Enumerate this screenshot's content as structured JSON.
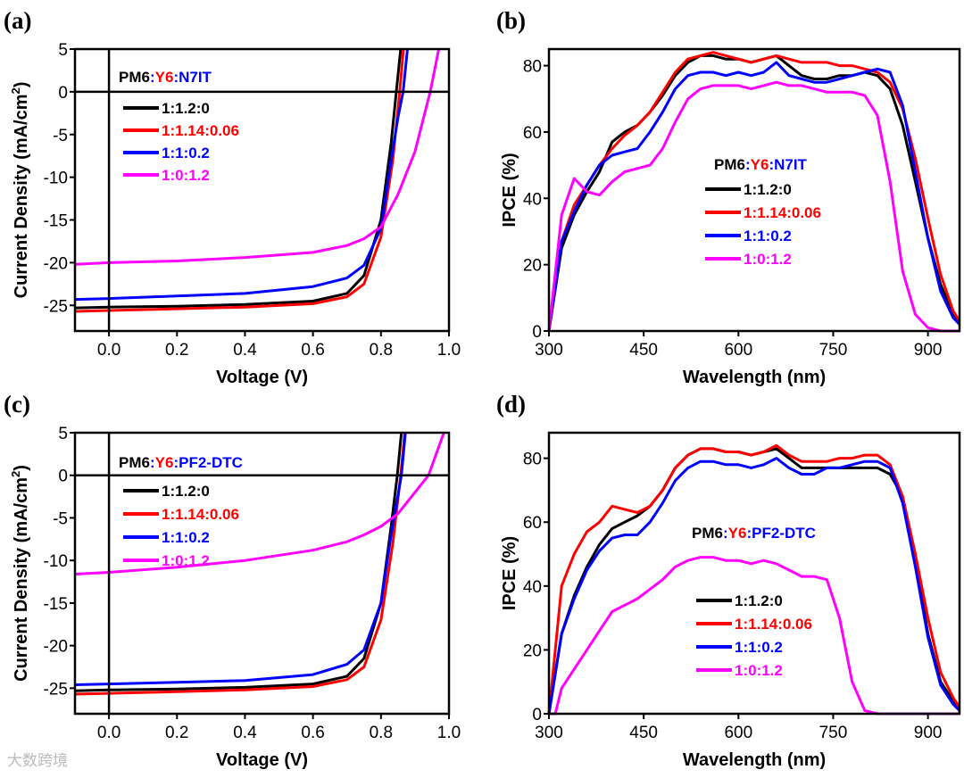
{
  "watermark": "大数跨境",
  "chart_data": [
    {
      "panel": "(a)",
      "type": "line",
      "xlabel": "Voltage (V)",
      "ylabel_parts": [
        "Current Density (mA/cm",
        "2",
        ")"
      ],
      "xlim": [
        -0.1,
        1.0
      ],
      "ylim": [
        -28,
        5
      ],
      "xticks": [
        0.0,
        0.2,
        0.4,
        0.6,
        0.8,
        1.0
      ],
      "xtick_labels": [
        "0.0",
        "0.2",
        "0.4",
        "0.6",
        "0.8",
        "1.0"
      ],
      "yticks": [
        5,
        0,
        -5,
        -10,
        -15,
        -20,
        -25
      ],
      "ytick_labels": [
        "5",
        "0",
        "-5",
        "-10",
        "-15",
        "-20",
        "-25"
      ],
      "zero_lines": true,
      "legend_title": [
        {
          "text": "PM6",
          "color": "#000000"
        },
        {
          "text": ":",
          "color": "#0000ff"
        },
        {
          "text": "Y6",
          "color": "#ff0000"
        },
        {
          "text": ":N7IT",
          "color": "#0000ff"
        }
      ],
      "legend_placement": "top-left",
      "series": [
        {
          "name": "1:1.2:0",
          "color": "#000000",
          "x": [
            -0.1,
            0,
            0.2,
            0.4,
            0.6,
            0.7,
            0.75,
            0.8,
            0.83,
            0.845,
            0.858
          ],
          "y": [
            -25.3,
            -25.2,
            -25.1,
            -24.9,
            -24.5,
            -23.6,
            -21.5,
            -15,
            -6,
            0,
            5
          ]
        },
        {
          "name": "1:1.14:0.06",
          "color": "#ff0000",
          "x": [
            -0.1,
            0,
            0.2,
            0.4,
            0.6,
            0.7,
            0.75,
            0.8,
            0.835,
            0.855,
            0.866
          ],
          "y": [
            -25.7,
            -25.6,
            -25.4,
            -25.2,
            -24.8,
            -24.0,
            -22.5,
            -17,
            -8,
            0,
            5
          ]
        },
        {
          "name": "1:1:0.2",
          "color": "#0000ff",
          "x": [
            -0.1,
            0,
            0.2,
            0.4,
            0.6,
            0.7,
            0.75,
            0.8,
            0.83,
            0.85,
            0.865,
            0.878
          ],
          "y": [
            -24.3,
            -24.2,
            -23.9,
            -23.6,
            -22.8,
            -21.8,
            -20.3,
            -16,
            -8,
            -3,
            0,
            5
          ]
        },
        {
          "name": "1:0:1.2",
          "color": "#ff00ff",
          "x": [
            -0.1,
            0,
            0.2,
            0.4,
            0.6,
            0.7,
            0.75,
            0.8,
            0.85,
            0.9,
            0.945,
            0.97
          ],
          "y": [
            -20.2,
            -20.0,
            -19.8,
            -19.4,
            -18.8,
            -18.0,
            -17.2,
            -15.8,
            -12,
            -7,
            0,
            5
          ]
        }
      ]
    },
    {
      "panel": "(b)",
      "type": "line",
      "xlabel": "Wavelength (nm)",
      "ylabel_parts": [
        "IPCE (%)",
        "",
        ""
      ],
      "xlim": [
        300,
        950
      ],
      "ylim": [
        0,
        85
      ],
      "xticks": [
        300,
        450,
        600,
        750,
        900
      ],
      "xtick_labels": [
        "300",
        "450",
        "600",
        "750",
        "900"
      ],
      "yticks": [
        0,
        20,
        40,
        60,
        80
      ],
      "ytick_labels": [
        "0",
        "20",
        "40",
        "60",
        "80"
      ],
      "zero_lines": false,
      "legend_title": [
        {
          "text": "PM6",
          "color": "#000000"
        },
        {
          "text": ":",
          "color": "#0000ff"
        },
        {
          "text": "Y6",
          "color": "#ff0000"
        },
        {
          "text": ":N7IT",
          "color": "#0000ff"
        }
      ],
      "legend_placement": "center",
      "series": [
        {
          "name": "1:1.2:0",
          "color": "#000000",
          "x": [
            300,
            320,
            340,
            360,
            380,
            400,
            420,
            440,
            460,
            480,
            500,
            520,
            540,
            560,
            580,
            600,
            620,
            640,
            660,
            680,
            700,
            720,
            740,
            760,
            780,
            800,
            820,
            840,
            860,
            880,
            900,
            920,
            940,
            950
          ],
          "y": [
            0,
            25,
            35,
            42,
            48,
            57,
            60,
            62,
            66,
            71,
            77,
            81,
            83,
            83,
            82,
            82,
            81,
            82,
            83,
            80,
            77,
            76,
            76,
            77,
            77,
            78,
            77,
            73,
            62,
            45,
            28,
            14,
            5,
            3
          ]
        },
        {
          "name": "1:1.14:0.06",
          "color": "#ff0000",
          "x": [
            300,
            320,
            340,
            360,
            380,
            400,
            420,
            440,
            460,
            480,
            500,
            520,
            540,
            560,
            580,
            600,
            620,
            640,
            660,
            680,
            700,
            720,
            740,
            760,
            780,
            800,
            820,
            840,
            860,
            880,
            900,
            920,
            940,
            950
          ],
          "y": [
            0,
            27,
            38,
            44,
            50,
            55,
            59,
            62,
            66,
            72,
            78,
            82,
            83,
            84,
            83,
            82,
            81,
            82,
            83,
            82,
            81,
            81,
            81,
            80,
            80,
            79,
            78,
            75,
            67,
            52,
            34,
            17,
            6,
            3
          ]
        },
        {
          "name": "1:1:0.2",
          "color": "#0000ff",
          "x": [
            300,
            320,
            340,
            360,
            380,
            400,
            420,
            440,
            460,
            480,
            500,
            520,
            540,
            560,
            580,
            600,
            620,
            640,
            660,
            680,
            700,
            720,
            740,
            760,
            780,
            800,
            820,
            840,
            860,
            880,
            900,
            920,
            940,
            950
          ],
          "y": [
            0,
            27,
            36,
            44,
            50,
            53,
            54,
            55,
            60,
            66,
            73,
            77,
            78,
            78,
            77,
            78,
            77,
            78,
            81,
            77,
            76,
            75,
            75,
            76,
            77,
            78,
            79,
            78,
            68,
            48,
            28,
            12,
            4,
            2
          ]
        },
        {
          "name": "1:0:1.2",
          "color": "#ff00ff",
          "x": [
            300,
            320,
            340,
            360,
            380,
            400,
            420,
            440,
            460,
            480,
            500,
            520,
            540,
            560,
            580,
            600,
            620,
            640,
            660,
            680,
            700,
            720,
            740,
            760,
            780,
            800,
            820,
            840,
            860,
            880,
            900,
            920,
            940,
            950
          ],
          "y": [
            0,
            35,
            46,
            42,
            41,
            45,
            48,
            49,
            50,
            55,
            63,
            70,
            73,
            74,
            74,
            74,
            73,
            74,
            75,
            74,
            74,
            73,
            72,
            72,
            72,
            71,
            65,
            45,
            18,
            5,
            1,
            0,
            0,
            0
          ]
        }
      ]
    },
    {
      "panel": "(c)",
      "type": "line",
      "xlabel": "Voltage (V)",
      "ylabel_parts": [
        "Current Density (mA/cm",
        "2",
        ")"
      ],
      "xlim": [
        -0.1,
        1.0
      ],
      "ylim": [
        -28,
        5
      ],
      "xticks": [
        0.0,
        0.2,
        0.4,
        0.6,
        0.8,
        1.0
      ],
      "xtick_labels": [
        "0.0",
        "0.2",
        "0.4",
        "0.6",
        "0.8",
        "1.0"
      ],
      "yticks": [
        5,
        0,
        -5,
        -10,
        -15,
        -20,
        -25
      ],
      "ytick_labels": [
        "5",
        "0",
        "-5",
        "-10",
        "-15",
        "-20",
        "-25"
      ],
      "zero_lines": true,
      "legend_title": [
        {
          "text": "PM6",
          "color": "#000000"
        },
        {
          "text": ":",
          "color": "#0000ff"
        },
        {
          "text": "Y6",
          "color": "#ff0000"
        },
        {
          "text": ":PF2-DTC",
          "color": "#0000ff"
        }
      ],
      "legend_placement": "top-left",
      "series": [
        {
          "name": "1:1.2:0",
          "color": "#000000",
          "x": [
            -0.1,
            0,
            0.2,
            0.4,
            0.6,
            0.7,
            0.75,
            0.8,
            0.83,
            0.848,
            0.86
          ],
          "y": [
            -25.3,
            -25.2,
            -25.1,
            -24.9,
            -24.5,
            -23.6,
            -21.5,
            -15,
            -6,
            0,
            5
          ]
        },
        {
          "name": "1:1.14:0.06",
          "color": "#ff0000",
          "x": [
            -0.1,
            0,
            0.2,
            0.4,
            0.6,
            0.7,
            0.75,
            0.8,
            0.835,
            0.858,
            0.87
          ],
          "y": [
            -25.7,
            -25.6,
            -25.4,
            -25.2,
            -24.8,
            -24.0,
            -22.5,
            -17,
            -8,
            0,
            5
          ]
        },
        {
          "name": "1:1:0.2",
          "color": "#0000ff",
          "x": [
            -0.1,
            0,
            0.2,
            0.4,
            0.6,
            0.7,
            0.75,
            0.8,
            0.83,
            0.86,
            0.872
          ],
          "y": [
            -24.6,
            -24.5,
            -24.3,
            -24.1,
            -23.4,
            -22.2,
            -20.5,
            -15,
            -7,
            0,
            5
          ]
        },
        {
          "name": "1:0:1.2",
          "color": "#ff00ff",
          "x": [
            -0.1,
            0,
            0.2,
            0.4,
            0.6,
            0.7,
            0.75,
            0.8,
            0.85,
            0.9,
            0.94,
            0.985
          ],
          "y": [
            -11.6,
            -11.4,
            -10.8,
            -10.0,
            -8.8,
            -7.8,
            -7.0,
            -6.0,
            -4.5,
            -2.0,
            0,
            5
          ]
        }
      ]
    },
    {
      "panel": "(d)",
      "type": "line",
      "xlabel": "Wavelength (nm)",
      "ylabel_parts": [
        "IPCE (%)",
        "",
        ""
      ],
      "xlim": [
        300,
        950
      ],
      "ylim": [
        0,
        88
      ],
      "xticks": [
        300,
        450,
        600,
        750,
        900
      ],
      "xtick_labels": [
        "300",
        "450",
        "600",
        "750",
        "900"
      ],
      "yticks": [
        0,
        20,
        40,
        60,
        80
      ],
      "ytick_labels": [
        "0",
        "20",
        "40",
        "60",
        "80"
      ],
      "zero_lines": false,
      "legend_title": [
        {
          "text": "PM6",
          "color": "#000000"
        },
        {
          "text": ":",
          "color": "#0000ff"
        },
        {
          "text": "Y6",
          "color": "#ff0000"
        },
        {
          "text": ":PF2-DTC",
          "color": "#0000ff"
        }
      ],
      "legend_placement": "center",
      "series": [
        {
          "name": "1:1.2:0",
          "color": "#000000",
          "x": [
            300,
            320,
            340,
            360,
            380,
            400,
            420,
            440,
            460,
            480,
            500,
            520,
            540,
            560,
            580,
            600,
            620,
            640,
            660,
            680,
            700,
            720,
            740,
            760,
            780,
            800,
            820,
            840,
            860,
            880,
            900,
            920,
            940,
            950
          ],
          "y": [
            0,
            25,
            37,
            46,
            53,
            58,
            60,
            62,
            65,
            70,
            77,
            81,
            83,
            83,
            82,
            82,
            81,
            82,
            83,
            80,
            77,
            77,
            77,
            77,
            77,
            77,
            77,
            75,
            68,
            48,
            25,
            10,
            4,
            2
          ]
        },
        {
          "name": "1:1.14:0.06",
          "color": "#ff0000",
          "x": [
            300,
            320,
            340,
            360,
            380,
            400,
            420,
            440,
            460,
            480,
            500,
            520,
            540,
            560,
            580,
            600,
            620,
            640,
            660,
            680,
            700,
            720,
            740,
            760,
            780,
            800,
            820,
            840,
            860,
            880,
            900,
            920,
            940,
            950
          ],
          "y": [
            0,
            40,
            50,
            57,
            60,
            65,
            64,
            63,
            65,
            70,
            77,
            81,
            83,
            83,
            82,
            82,
            81,
            82,
            84,
            81,
            79,
            79,
            79,
            80,
            80,
            81,
            81,
            78,
            68,
            50,
            30,
            13,
            5,
            2
          ]
        },
        {
          "name": "1:1:0.2",
          "color": "#0000ff",
          "x": [
            300,
            320,
            340,
            360,
            380,
            400,
            420,
            440,
            460,
            480,
            500,
            520,
            540,
            560,
            580,
            600,
            620,
            640,
            660,
            680,
            700,
            720,
            740,
            760,
            780,
            800,
            820,
            840,
            860,
            880,
            900,
            920,
            940,
            950
          ],
          "y": [
            0,
            25,
            36,
            45,
            51,
            55,
            56,
            56,
            60,
            66,
            73,
            77,
            79,
            79,
            78,
            78,
            77,
            78,
            80,
            77,
            75,
            75,
            77,
            77,
            78,
            79,
            79,
            77,
            66,
            46,
            24,
            9,
            3,
            1
          ]
        },
        {
          "name": "1:0:1.2",
          "color": "#ff00ff",
          "x": [
            300,
            310,
            320,
            340,
            360,
            380,
            400,
            420,
            440,
            460,
            480,
            500,
            520,
            540,
            560,
            580,
            600,
            620,
            640,
            660,
            680,
            700,
            720,
            740,
            760,
            780,
            800,
            820,
            950
          ],
          "y": [
            0,
            0,
            8,
            14,
            20,
            26,
            32,
            34,
            36,
            39,
            42,
            46,
            48,
            49,
            49,
            48,
            48,
            47,
            48,
            47,
            45,
            43,
            43,
            42,
            30,
            10,
            1,
            0,
            0
          ]
        }
      ]
    }
  ]
}
